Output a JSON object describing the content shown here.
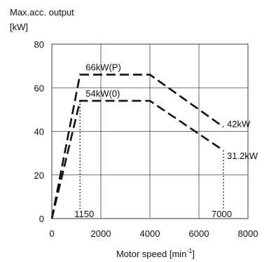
{
  "chart_data": {
    "type": "line",
    "title": "",
    "ylabel_line1": "Max.acc. output",
    "ylabel_line2": "[kW]",
    "xlabel_main": "Motor speed [min",
    "xlabel_sup": "-1",
    "xlabel_close": "]",
    "xlim": [
      0,
      8000
    ],
    "ylim": [
      0,
      80
    ],
    "xticks": [
      0,
      2000,
      4000,
      6000,
      8000
    ],
    "yticks": [
      0,
      20,
      40,
      60,
      80
    ],
    "grid": true,
    "series": [
      {
        "name": "66kW(P)",
        "style": "dashed",
        "x": [
          0,
          1150,
          4000,
          7000
        ],
        "y": [
          0,
          66,
          66,
          42
        ]
      },
      {
        "name": "54kW(0)",
        "style": "dashed",
        "x": [
          0,
          1150,
          4000,
          7000
        ],
        "y": [
          0,
          54,
          54,
          31.2
        ]
      }
    ],
    "reference_lines": [
      {
        "x": 1150,
        "label": "1150"
      },
      {
        "x": 7000,
        "label": "7000"
      }
    ],
    "annotations": [
      {
        "text": "42kW",
        "x": 7000,
        "y": 42
      },
      {
        "text": "31.2kW",
        "x": 7000,
        "y": 31.2
      }
    ]
  }
}
